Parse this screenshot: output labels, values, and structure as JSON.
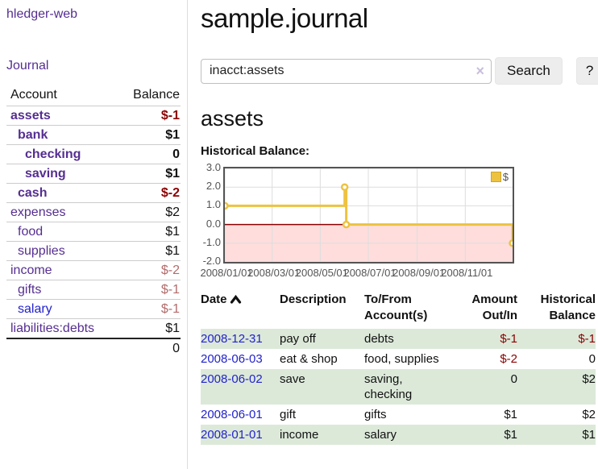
{
  "app": {
    "brand": "hledger-web",
    "nav_journal": "Journal"
  },
  "header": {
    "title": "sample.journal"
  },
  "search": {
    "value": "inacct:assets",
    "clear_icon": "×",
    "button_label": "Search",
    "help_label": "?"
  },
  "sidebar": {
    "headers": {
      "account": "Account",
      "balance": "Balance"
    },
    "accounts": [
      {
        "name": "assets",
        "indent": 0,
        "bold": true,
        "balance": "$-1",
        "balance_tone": "neg",
        "link_tone": "purple"
      },
      {
        "name": "bank",
        "indent": 1,
        "bold": true,
        "balance": "$1",
        "balance_tone": "normal",
        "link_tone": "purple"
      },
      {
        "name": "checking",
        "indent": 2,
        "bold": true,
        "balance": "0",
        "balance_tone": "normal",
        "link_tone": "purple"
      },
      {
        "name": "saving",
        "indent": 2,
        "bold": true,
        "balance": "$1",
        "balance_tone": "normal",
        "link_tone": "purple"
      },
      {
        "name": "cash",
        "indent": 1,
        "bold": true,
        "balance": "$-2",
        "balance_tone": "neg",
        "link_tone": "purple"
      },
      {
        "name": "expenses",
        "indent": 0,
        "bold": false,
        "balance": "$2",
        "balance_tone": "normal",
        "link_tone": "purple"
      },
      {
        "name": "food",
        "indent": 1,
        "bold": false,
        "balance": "$1",
        "balance_tone": "normal",
        "link_tone": "purple"
      },
      {
        "name": "supplies",
        "indent": 1,
        "bold": false,
        "balance": "$1",
        "balance_tone": "normal",
        "link_tone": "purple"
      },
      {
        "name": "income",
        "indent": 0,
        "bold": false,
        "balance": "$-2",
        "balance_tone": "neg-soft",
        "link_tone": "purple"
      },
      {
        "name": "gifts",
        "indent": 1,
        "bold": false,
        "balance": "$-1",
        "balance_tone": "neg-soft",
        "link_tone": "purple"
      },
      {
        "name": "salary",
        "indent": 1,
        "bold": false,
        "balance": "$-1",
        "balance_tone": "neg-soft",
        "link_tone": "blue"
      },
      {
        "name": "liabilities:debts",
        "indent": 0,
        "bold": false,
        "balance": "$1",
        "balance_tone": "normal",
        "link_tone": "purple"
      }
    ],
    "total": "0"
  },
  "main": {
    "account_title": "assets",
    "chart_label": "Historical Balance:"
  },
  "chart_data": {
    "type": "line",
    "step": true,
    "title": "Historical Balance:",
    "x_range": [
      "2008-01-01",
      "2008-12-31"
    ],
    "ylim": [
      -2,
      3
    ],
    "y_ticks": [
      3.0,
      2.0,
      1.0,
      0.0,
      -1.0,
      -2.0
    ],
    "x_ticks": [
      {
        "label": "2008/01/01",
        "date": "2008-01-01"
      },
      {
        "label": "2008/03/01",
        "date": "2008-03-01"
      },
      {
        "label": "2008/05/01",
        "date": "2008-05-01"
      },
      {
        "label": "2008/07/01",
        "date": "2008-07-01"
      },
      {
        "label": "2008/09/01",
        "date": "2008-09-01"
      },
      {
        "label": "2008/11/01",
        "date": "2008-11-01"
      }
    ],
    "series": [
      {
        "name": "$",
        "points": [
          [
            "2008-01-01",
            1
          ],
          [
            "2008-06-01",
            2
          ],
          [
            "2008-06-03",
            0
          ],
          [
            "2008-12-31",
            -1
          ]
        ]
      }
    ],
    "legend": "$",
    "legend_position": "top-right",
    "grid": true
  },
  "register": {
    "headers": {
      "date": "Date",
      "description": "Description",
      "account": "To/From Account(s)",
      "amount": "Amount Out/In",
      "balance": "Historical Balance"
    },
    "rows": [
      {
        "date": "2008-12-31",
        "description": "pay off",
        "accounts": "debts",
        "amount": "$-1",
        "amount_negative": true,
        "balance": "$-1",
        "balance_negative": true
      },
      {
        "date": "2008-06-03",
        "description": "eat & shop",
        "accounts": "food, supplies",
        "amount": "$-2",
        "amount_negative": true,
        "balance": "0",
        "balance_negative": false
      },
      {
        "date": "2008-06-02",
        "description": "save",
        "accounts": "saving, checking",
        "amount": "0",
        "amount_negative": false,
        "balance": "$2",
        "balance_negative": false
      },
      {
        "date": "2008-06-01",
        "description": "gift",
        "accounts": "gifts",
        "amount": "$1",
        "amount_negative": false,
        "balance": "$2",
        "balance_negative": false
      },
      {
        "date": "2008-01-01",
        "description": "income",
        "accounts": "salary",
        "amount": "$1",
        "amount_negative": false,
        "balance": "$1",
        "balance_negative": false
      }
    ]
  },
  "colors": {
    "purple": "#552e91",
    "blue": "#2222cc",
    "neg": "#8b0000",
    "neg-soft": "#b36b6b",
    "stripe": "#dce9d9",
    "gold": "#edc240",
    "pink": "#ffdddd",
    "zero-line": "#8b0000",
    "chart-border": "#545454",
    "grid-line": "#dddddd",
    "divider": "#dddddd",
    "rule": "#cccccc",
    "axis": "#545454"
  }
}
